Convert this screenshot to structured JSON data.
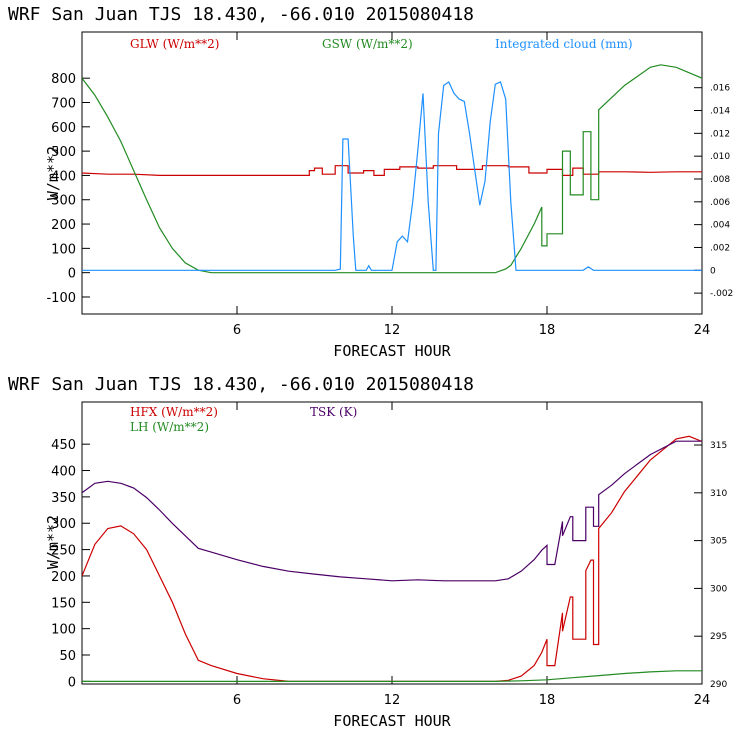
{
  "chart_data": [
    {
      "type": "line",
      "title": "WRF  San Juan TJS  18.430, -66.010  2015080418",
      "xlabel": "FORECAST HOUR",
      "ylabel": "W/m**2",
      "xlim": [
        0,
        24
      ],
      "ylim": [
        -170,
        990
      ],
      "xticks": [
        6,
        12,
        18,
        24
      ],
      "yticks": [
        -100,
        0,
        100,
        200,
        300,
        400,
        500,
        600,
        700,
        800
      ],
      "y2lim": [
        -0.00383,
        0.02088
      ],
      "y2ticks": [
        -0.002,
        0,
        0.002,
        0.004,
        0.006,
        0.008,
        0.01,
        0.012,
        0.014,
        0.016
      ],
      "y2ticklabels": [
        "-.002",
        "0",
        ".002",
        ".004",
        ".006",
        ".008",
        ".010",
        ".012",
        ".014",
        ".016"
      ],
      "legend": [
        "GLW (W/m**2)",
        "GSW (W/m**2)",
        "Integrated cloud (mm)"
      ],
      "series": [
        {
          "name": "GLW (W/m**2)",
          "color": "#cc0000",
          "axis": "left",
          "x": [
            0,
            1,
            2,
            3,
            4,
            5,
            6,
            7,
            8,
            8.8,
            8.8,
            9.0,
            9.0,
            9.3,
            9.3,
            9.8,
            9.8,
            10.3,
            10.3,
            10.9,
            10.9,
            11.3,
            11.3,
            11.7,
            11.7,
            12.3,
            12.3,
            13.0,
            13.0,
            13.6,
            13.6,
            14.5,
            14.5,
            15.5,
            15.5,
            16.5,
            16.5,
            17.3,
            17.3,
            18.0,
            18.0,
            18.6,
            18.6,
            19.0,
            19.0,
            19.4,
            19.4,
            20.0,
            20.0,
            21,
            22,
            23,
            24
          ],
          "values": [
            410,
            405,
            405,
            400,
            400,
            400,
            400,
            400,
            400,
            400,
            420,
            420,
            430,
            430,
            405,
            405,
            440,
            440,
            410,
            410,
            420,
            420,
            400,
            400,
            425,
            425,
            435,
            435,
            430,
            430,
            440,
            440,
            425,
            425,
            440,
            440,
            435,
            435,
            410,
            410,
            425,
            425,
            400,
            400,
            430,
            430,
            405,
            405,
            415,
            415,
            413,
            415,
            415
          ]
        },
        {
          "name": "GSW (W/m**2)",
          "color": "#228b22",
          "axis": "left",
          "x": [
            0,
            0.5,
            1,
            1.5,
            2,
            2.5,
            3,
            3.5,
            4,
            4.5,
            5,
            6,
            8,
            10,
            12,
            14,
            16,
            16.4,
            16.6,
            17,
            17.5,
            17.8,
            17.8,
            18.0,
            18.0,
            18.6,
            18.6,
            18.9,
            18.9,
            19.4,
            19.4,
            19.7,
            19.7,
            20.0,
            20.0,
            21,
            22,
            22.4,
            23,
            24
          ],
          "values": [
            800,
            730,
            640,
            540,
            420,
            300,
            185,
            100,
            40,
            10,
            0,
            0,
            0,
            0,
            0,
            0,
            0,
            15,
            30,
            100,
            200,
            270,
            110,
            110,
            160,
            160,
            500,
            500,
            320,
            320,
            580,
            580,
            300,
            300,
            670,
            770,
            845,
            855,
            845,
            800
          ]
        },
        {
          "name": "Integrated cloud (mm)",
          "color": "#1e90ff",
          "axis": "right",
          "x": [
            0,
            9.8,
            10.0,
            10.1,
            10.3,
            10.5,
            10.6,
            10.7,
            11.0,
            11.1,
            11.2,
            12.0,
            12.2,
            12.4,
            12.6,
            12.8,
            13.0,
            13.2,
            13.4,
            13.6,
            13.7,
            13.8,
            14.0,
            14.2,
            14.4,
            14.6,
            14.8,
            15.0,
            15.4,
            15.6,
            15.8,
            16.0,
            16.2,
            16.4,
            16.6,
            16.8,
            17.0,
            19.4,
            19.6,
            19.8,
            24
          ],
          "values": [
            0,
            0,
            0.0001,
            0.0115,
            0.0115,
            0.003,
            0,
            0,
            0,
            0.0004,
            0,
            0,
            0.0025,
            0.003,
            0.0025,
            0.006,
            0.0105,
            0.0155,
            0.006,
            0,
            0,
            0.012,
            0.0162,
            0.0165,
            0.0155,
            0.015,
            0.0148,
            0.012,
            0.0057,
            0.0078,
            0.013,
            0.0163,
            0.0165,
            0.015,
            0.006,
            0,
            0,
            0,
            0.0003,
            0,
            0
          ]
        }
      ]
    },
    {
      "type": "line",
      "title": "WRF  San Juan TJS  18.430, -66.010  2015080418",
      "xlabel": "FORECAST HOUR",
      "ylabel": "W/m**2",
      "xlim": [
        0,
        24
      ],
      "ylim": [
        -5,
        530
      ],
      "xticks": [
        6,
        12,
        18,
        24
      ],
      "yticks": [
        0,
        50,
        100,
        150,
        200,
        250,
        300,
        350,
        400,
        450
      ],
      "y2lim": [
        290,
        319.5
      ],
      "y2ticks": [
        290,
        295,
        300,
        305,
        310,
        315
      ],
      "y2ticklabels": [
        "290",
        "295",
        "300",
        "305",
        "310",
        "315"
      ],
      "legend": [
        "HFX (W/m**2)",
        "LH  (W/m**2)",
        "TSK (K)"
      ],
      "series": [
        {
          "name": "HFX (W/m**2)",
          "color": "#cc0000",
          "axis": "left",
          "x": [
            0,
            0.5,
            1,
            1.5,
            2,
            2.5,
            3,
            3.5,
            4,
            4.5,
            5,
            6,
            7,
            8,
            9,
            10,
            12,
            14,
            15,
            16,
            16.5,
            17,
            17.5,
            17.8,
            18.0,
            18.0,
            18.3,
            18.6,
            18.6,
            18.9,
            19.0,
            19.0,
            19.5,
            19.5,
            19.7,
            19.8,
            19.8,
            20.0,
            20.0,
            20.5,
            21,
            22,
            23,
            23.5,
            24
          ],
          "values": [
            200,
            260,
            290,
            295,
            280,
            250,
            200,
            150,
            90,
            40,
            30,
            15,
            5,
            0,
            0,
            0,
            0,
            0,
            0,
            0,
            2,
            10,
            30,
            55,
            80,
            30,
            30,
            130,
            95,
            160,
            160,
            80,
            80,
            210,
            230,
            230,
            70,
            70,
            290,
            320,
            360,
            420,
            460,
            465,
            455
          ]
        },
        {
          "name": "LH  (W/m**2)",
          "color": "#228b22",
          "axis": "left",
          "x": [
            0,
            6,
            12,
            16,
            17,
            18,
            19,
            20,
            21,
            22,
            23,
            24
          ],
          "values": [
            0,
            0,
            0,
            0,
            1,
            3,
            7,
            11,
            15,
            18,
            20,
            20
          ]
        },
        {
          "name": "TSK (K)",
          "color": "#4b0066",
          "axis": "right",
          "x": [
            0,
            0.5,
            1,
            1.5,
            2,
            2.5,
            3,
            3.5,
            4,
            4.5,
            5,
            6,
            7,
            8,
            9,
            10,
            11,
            12,
            13,
            14,
            15,
            16,
            16.5,
            17,
            17.5,
            17.8,
            18,
            18,
            18.3,
            18.6,
            18.6,
            18.9,
            19.0,
            19.0,
            19.5,
            19.5,
            19.8,
            19.8,
            20,
            20,
            20.5,
            21,
            22,
            23,
            24
          ],
          "values": [
            310,
            311,
            311.2,
            311,
            310.5,
            309.5,
            308.2,
            306.8,
            305.5,
            304.2,
            303.8,
            303,
            302.3,
            301.8,
            301.5,
            301.2,
            301,
            300.8,
            300.9,
            300.8,
            300.8,
            300.8,
            301,
            301.8,
            303,
            304,
            304.5,
            302.5,
            302.5,
            307,
            305.5,
            307.5,
            307.5,
            305,
            305,
            308.5,
            308.5,
            306.5,
            306.5,
            309.8,
            310.8,
            312,
            314,
            315.4,
            315.4
          ]
        }
      ]
    }
  ]
}
